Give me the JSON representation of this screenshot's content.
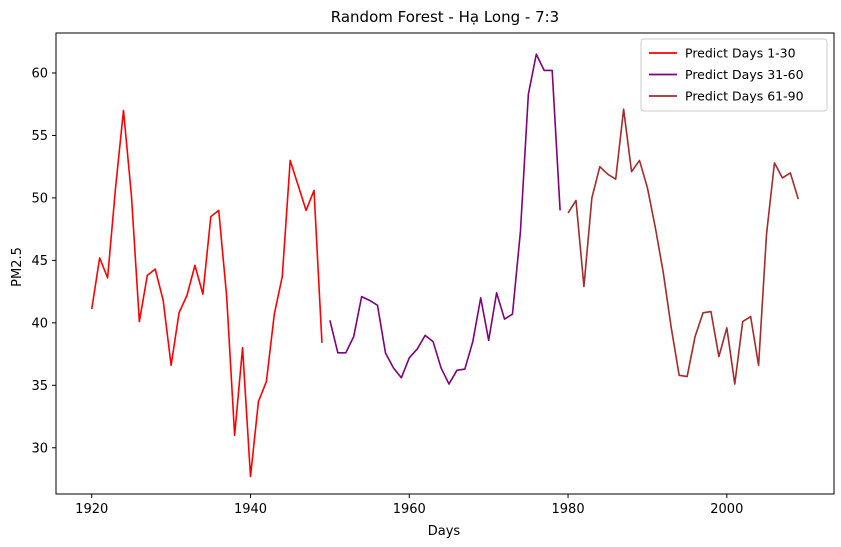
{
  "chart_data": {
    "type": "line",
    "title": "Random Forest - Hạ Long - 7:3",
    "xlabel": "Days",
    "ylabel": "PM2.5",
    "xlim": [
      1915.5,
      2013.5
    ],
    "ylim": [
      26.3,
      63.2
    ],
    "xticks": [
      1920,
      1940,
      1960,
      1980,
      2000
    ],
    "yticks": [
      30,
      35,
      40,
      45,
      50,
      55,
      60
    ],
    "grid": false,
    "legend_position": "top-right",
    "series": [
      {
        "name": "Predict Days 1-30",
        "color": "#ff0000",
        "x": [
          1920,
          1921,
          1922,
          1923,
          1924,
          1925,
          1926,
          1927,
          1928,
          1929,
          1930,
          1931,
          1932,
          1933,
          1934,
          1935,
          1936,
          1937,
          1938,
          1939,
          1940,
          1941,
          1942,
          1943,
          1944,
          1945,
          1946,
          1947,
          1948,
          1949
        ],
        "y": [
          41.1,
          45.2,
          43.6,
          50.8,
          57.0,
          50.2,
          40.1,
          43.8,
          44.3,
          41.8,
          36.6,
          40.8,
          42.2,
          44.6,
          42.3,
          48.5,
          49.0,
          42.1,
          31.0,
          38.0,
          27.7,
          33.7,
          35.3,
          40.7,
          43.7,
          53.0,
          51.0,
          49.0,
          50.6,
          38.4
        ]
      },
      {
        "name": "Predict Days 31-60",
        "color": "#800080",
        "x": [
          1950,
          1951,
          1952,
          1953,
          1954,
          1955,
          1956,
          1957,
          1958,
          1959,
          1960,
          1961,
          1962,
          1963,
          1964,
          1965,
          1966,
          1967,
          1968,
          1969,
          1970,
          1971,
          1972,
          1973,
          1974,
          1975,
          1976,
          1977,
          1978,
          1979
        ],
        "y": [
          40.2,
          37.6,
          37.6,
          38.9,
          42.1,
          41.8,
          41.4,
          37.6,
          36.4,
          35.6,
          37.2,
          37.9,
          39.0,
          38.5,
          36.4,
          35.1,
          36.2,
          36.3,
          38.5,
          42.0,
          38.6,
          42.4,
          40.3,
          40.7,
          47.3,
          58.3,
          61.5,
          60.2,
          60.2,
          49.0
        ]
      },
      {
        "name": "Predict Days 61-90",
        "color": "#a52a2a",
        "x": [
          1980,
          1981,
          1982,
          1983,
          1984,
          1985,
          1986,
          1987,
          1988,
          1989,
          1990,
          1991,
          1992,
          1993,
          1994,
          1995,
          1996,
          1997,
          1998,
          1999,
          2000,
          2001,
          2002,
          2003,
          2004,
          2005,
          2006,
          2007,
          2008,
          2009
        ],
        "y": [
          48.8,
          49.8,
          42.9,
          50.0,
          52.5,
          51.9,
          51.5,
          57.1,
          52.1,
          53.0,
          50.8,
          47.6,
          44.0,
          39.6,
          35.8,
          35.7,
          38.9,
          40.8,
          40.9,
          37.3,
          39.6,
          35.1,
          40.1,
          40.5,
          36.6,
          47.1,
          52.8,
          51.6,
          52.0,
          49.9
        ]
      }
    ]
  }
}
